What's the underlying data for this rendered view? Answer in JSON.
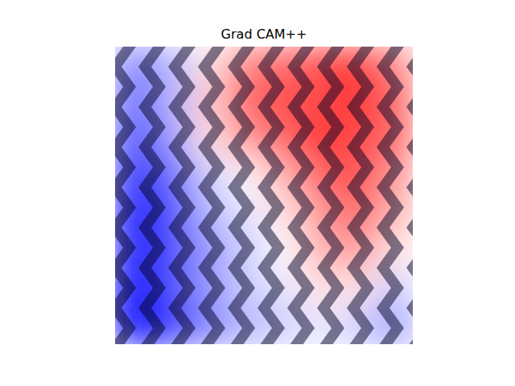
{
  "chart_data": {
    "type": "heatmap",
    "title": "Grad CAM++",
    "tick_labels": false,
    "zlim": [
      0,
      1
    ],
    "cells": [
      [
        0.25,
        0.35,
        0.55,
        0.75,
        0.8,
        0.85,
        0.9,
        0.75
      ],
      [
        0.2,
        0.35,
        0.6,
        0.8,
        0.85,
        0.85,
        0.9,
        0.8
      ],
      [
        0.15,
        0.3,
        0.55,
        0.7,
        0.8,
        0.9,
        0.85,
        0.8
      ],
      [
        0.1,
        0.2,
        0.4,
        0.5,
        0.65,
        0.8,
        0.85,
        0.7
      ],
      [
        0.05,
        0.15,
        0.35,
        0.45,
        0.55,
        0.7,
        0.8,
        0.65
      ],
      [
        0.05,
        0.15,
        0.3,
        0.4,
        0.5,
        0.65,
        0.7,
        0.55
      ],
      [
        0.0,
        0.15,
        0.3,
        0.4,
        0.45,
        0.55,
        0.55,
        0.4
      ],
      [
        0.0,
        0.1,
        0.25,
        0.35,
        0.4,
        0.45,
        0.4,
        0.3
      ]
    ]
  }
}
